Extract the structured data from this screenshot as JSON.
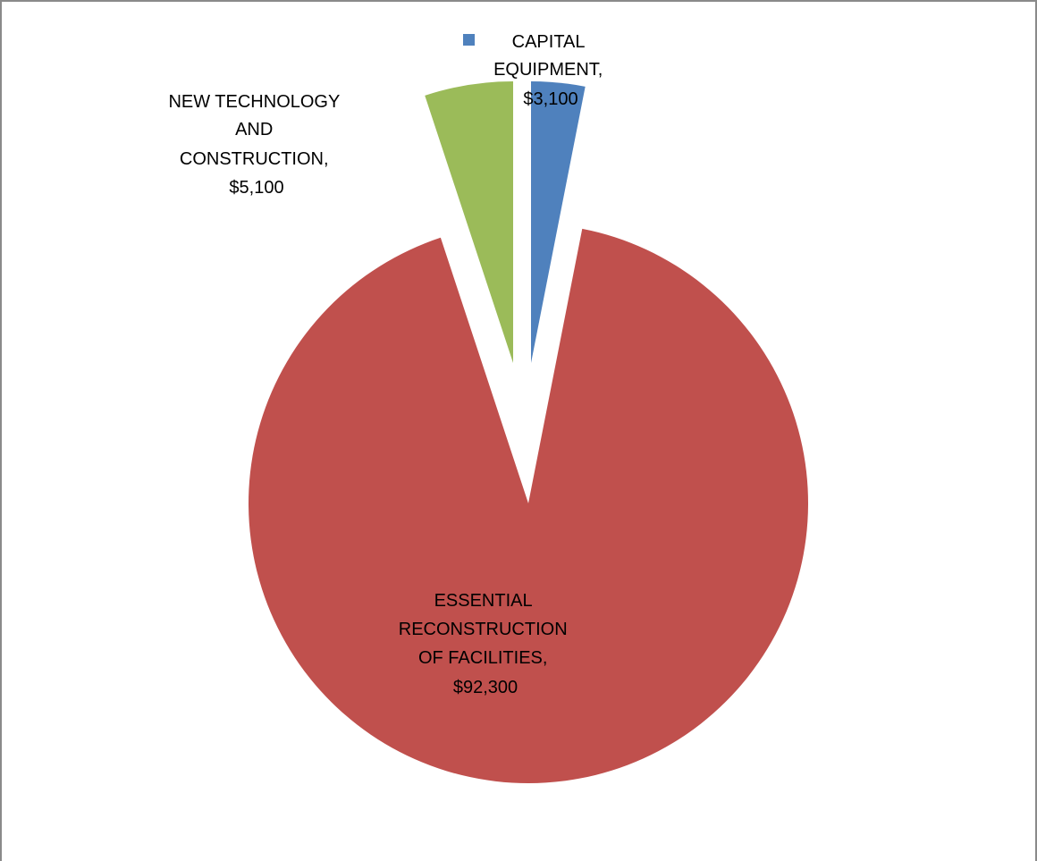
{
  "chart_data": {
    "type": "pie",
    "categories": [
      "CAPITAL EQUIPMENT",
      "ESSENTIAL RECONSTRUCTION OF FACILITIES",
      "NEW TECHNOLOGY AND CONSTRUCTION"
    ],
    "values": [
      3100,
      92300,
      5100
    ],
    "colors": [
      "#4f81bd",
      "#c0504d",
      "#9bbb59"
    ],
    "exploded": true,
    "start_angle": "12 o'clock, clockwise",
    "legend": "none",
    "data_labels": [
      [
        "CAPITAL",
        "EQUIPMENT,",
        "$3,100"
      ],
      [
        "ESSENTIAL",
        "RECONSTRUCTION",
        "OF FACILITIES,",
        "$92,300"
      ],
      [
        "NEW TECHNOLOGY",
        "AND",
        "CONSTRUCTION,",
        "$5,100"
      ]
    ],
    "legend_key_color": "#4f81bd"
  }
}
